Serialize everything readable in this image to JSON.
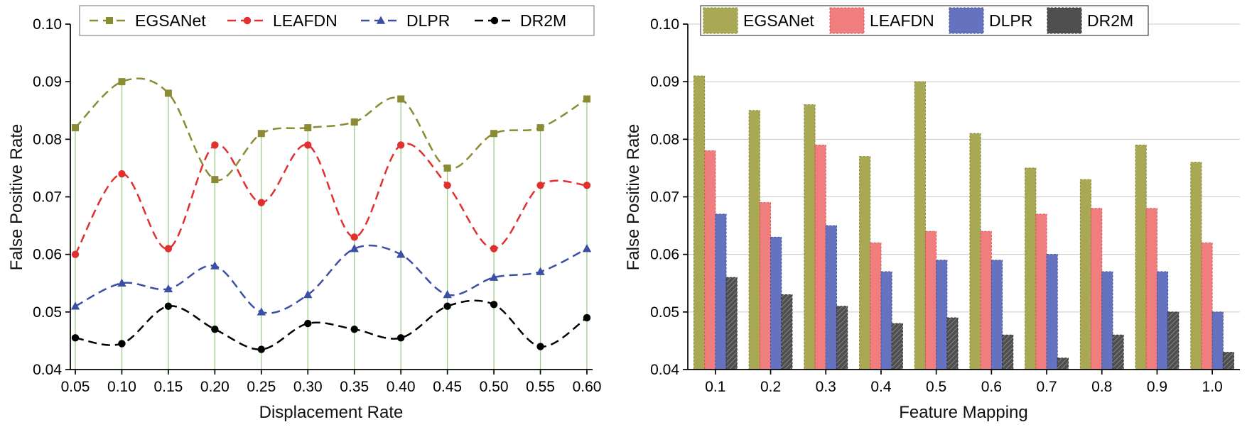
{
  "figure": {
    "background": "#ffffff",
    "stem_color": "#8fc97d",
    "grid_color": "#c9c9c9",
    "axis_color": "#000000"
  },
  "chart_data": [
    {
      "type": "line",
      "title": "",
      "xlabel": "Displacement Rate",
      "ylabel": "False Positive Rate",
      "x": [
        0.05,
        0.1,
        0.15,
        0.2,
        0.25,
        0.3,
        0.35,
        0.4,
        0.45,
        0.5,
        0.55,
        0.6
      ],
      "xtick_labels": [
        "0.05",
        "0.10",
        "0.15",
        "0.20",
        "0.25",
        "0.30",
        "0.35",
        "0.40",
        "0.45",
        "0.50",
        "0.55",
        "0.60"
      ],
      "ylim": [
        0.04,
        0.1
      ],
      "yticks": [
        0.04,
        0.05,
        0.06,
        0.07,
        0.08,
        0.09,
        0.1
      ],
      "ytick_labels": [
        "0.04",
        "0.05",
        "0.06",
        "0.07",
        "0.08",
        "0.09",
        "0.10"
      ],
      "grid": "vertical-green-stems",
      "legend_position": "top",
      "line_style": "dashed",
      "series": [
        {
          "name": "EGSANet",
          "color": "#8b8b33",
          "marker": "square",
          "values": [
            0.082,
            0.09,
            0.088,
            0.073,
            0.081,
            0.082,
            0.083,
            0.087,
            0.075,
            0.081,
            0.082,
            0.087
          ]
        },
        {
          "name": "LEAFDN",
          "color": "#e03030",
          "marker": "circle",
          "values": [
            0.06,
            0.074,
            0.061,
            0.079,
            0.069,
            0.079,
            0.063,
            0.079,
            0.072,
            0.061,
            0.072,
            0.072
          ]
        },
        {
          "name": "DLPR",
          "color": "#3b50a3",
          "marker": "triangle",
          "values": [
            0.051,
            0.055,
            0.054,
            0.058,
            0.05,
            0.053,
            0.061,
            0.06,
            0.053,
            0.056,
            0.057,
            0.061
          ]
        },
        {
          "name": "DR2M",
          "color": "#000000",
          "marker": "circle",
          "values": [
            0.0455,
            0.0445,
            0.051,
            0.047,
            0.0435,
            0.048,
            0.047,
            0.0455,
            0.051,
            0.0513,
            0.044,
            0.049
          ]
        }
      ]
    },
    {
      "type": "bar",
      "title": "",
      "xlabel": "Feature Mapping",
      "ylabel": "False Positive Rate",
      "categories": [
        "0.1",
        "0.2",
        "0.3",
        "0.4",
        "0.5",
        "0.6",
        "0.7",
        "0.8",
        "0.9",
        "1.0"
      ],
      "ylim": [
        0.04,
        0.1
      ],
      "yticks": [
        0.04,
        0.05,
        0.06,
        0.07,
        0.08,
        0.09,
        0.1
      ],
      "ytick_labels": [
        "0.04",
        "0.05",
        "0.06",
        "0.07",
        "0.08",
        "0.09",
        "0.10"
      ],
      "grid": "horizontal",
      "legend_position": "top",
      "series": [
        {
          "name": "EGSANet",
          "color": "#a8a855",
          "edge": "#8b8b33",
          "hatch": "none",
          "values": [
            0.091,
            0.085,
            0.086,
            0.077,
            0.09,
            0.081,
            0.075,
            0.073,
            0.079,
            0.076
          ]
        },
        {
          "name": "LEAFDN",
          "color": "#f07e7e",
          "edge": "#d85555",
          "hatch": "none",
          "values": [
            0.078,
            0.069,
            0.079,
            0.062,
            0.064,
            0.064,
            0.067,
            0.068,
            0.068,
            0.062
          ]
        },
        {
          "name": "DLPR",
          "color": "#6472c0",
          "edge": "#44509a",
          "hatch": "none",
          "values": [
            0.067,
            0.063,
            0.065,
            0.057,
            0.059,
            0.059,
            0.06,
            0.057,
            0.057,
            0.05
          ]
        },
        {
          "name": "DR2M",
          "color": "#4f4f4f",
          "edge": "#333333",
          "hatch": "diagonal",
          "values": [
            0.056,
            0.053,
            0.051,
            0.048,
            0.049,
            0.046,
            0.042,
            0.046,
            0.05,
            0.043
          ]
        }
      ]
    }
  ]
}
